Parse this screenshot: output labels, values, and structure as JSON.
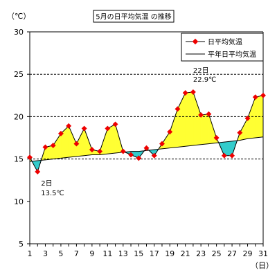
{
  "chart_data": {
    "type": "line",
    "title": "5月の日平均気温 の推移",
    "ylabel": "（℃）",
    "xlabel": "（日）",
    "ylim": [
      5,
      30
    ],
    "yticks": [
      5,
      10,
      15,
      20,
      25,
      30
    ],
    "xlim": [
      1,
      31
    ],
    "xticks": [
      1,
      3,
      5,
      7,
      9,
      11,
      13,
      15,
      17,
      19,
      21,
      23,
      25,
      27,
      29,
      31
    ],
    "gridlines": "dashed at y=15,20,25",
    "legend_position": "top-right",
    "legend": [
      "日平均気温",
      "平年日平均気温"
    ],
    "x": [
      1,
      2,
      3,
      4,
      5,
      6,
      7,
      8,
      9,
      10,
      11,
      12,
      13,
      14,
      15,
      16,
      17,
      18,
      19,
      20,
      21,
      22,
      23,
      24,
      25,
      26,
      27,
      28,
      29,
      30,
      31
    ],
    "series": [
      {
        "name": "日平均気温",
        "color": "#ee0000",
        "values": [
          15.2,
          13.5,
          16.4,
          16.6,
          18.0,
          18.9,
          16.8,
          18.6,
          16.1,
          15.9,
          18.6,
          19.1,
          15.9,
          15.5,
          15.1,
          16.3,
          15.4,
          16.8,
          18.2,
          20.9,
          22.8,
          22.9,
          20.2,
          20.3,
          17.5,
          15.4,
          15.4,
          18.1,
          19.8,
          22.3,
          22.5
        ]
      },
      {
        "name": "平年日平均気温",
        "color": "#000000",
        "values": [
          14.7,
          14.8,
          14.9,
          15.0,
          15.1,
          15.2,
          15.3,
          15.4,
          15.5,
          15.5,
          15.6,
          15.7,
          15.8,
          15.9,
          15.9,
          16.0,
          16.1,
          16.2,
          16.3,
          16.4,
          16.5,
          16.6,
          16.7,
          16.8,
          16.9,
          17.0,
          17.1,
          17.2,
          17.4,
          17.5,
          17.6
        ]
      }
    ],
    "fill_above_color": "#ffff33",
    "fill_below_color": "#33cccc",
    "annotations": [
      {
        "day_text": "2日",
        "value_text": "13.5℃",
        "x": 2,
        "y": 13.5
      },
      {
        "day_text": "22日",
        "value_text": "22.9℃",
        "x": 22,
        "y": 22.9
      }
    ]
  }
}
